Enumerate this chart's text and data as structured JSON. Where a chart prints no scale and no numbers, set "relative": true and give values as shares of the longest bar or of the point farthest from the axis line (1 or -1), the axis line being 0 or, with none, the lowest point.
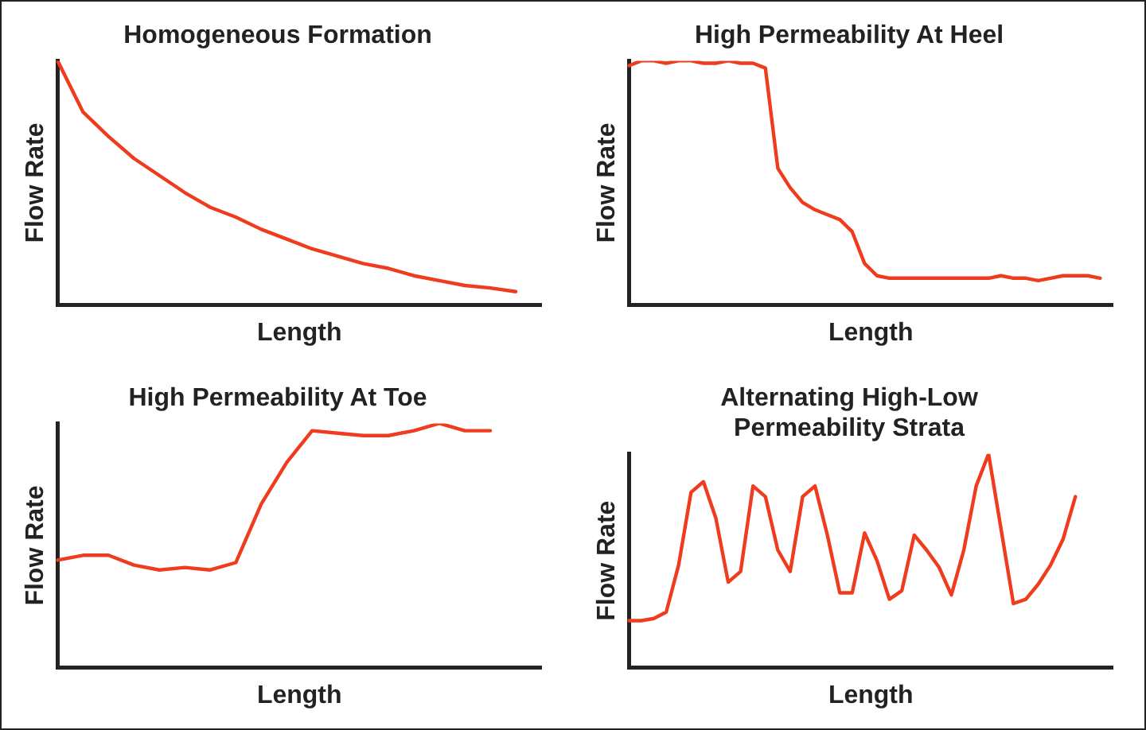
{
  "chart_data": [
    {
      "type": "line",
      "title": "Homogeneous Formation",
      "xlabel": "Length",
      "ylabel": "Flow Rate",
      "relative": true,
      "tick_labels": false,
      "grid": false,
      "legend": false,
      "marker": "none",
      "line_style": "solid",
      "categories": [
        null,
        null,
        null,
        null,
        null,
        null,
        null,
        null,
        null,
        null,
        null,
        null,
        null,
        null,
        null,
        null,
        null,
        null,
        null,
        null
      ],
      "series": [
        {
          "color": "#f03c1e",
          "values": [
            1.0,
            0.79,
            0.69,
            0.6,
            0.53,
            0.46,
            0.4,
            0.36,
            0.31,
            0.27,
            0.23,
            0.2,
            0.17,
            0.15,
            0.12,
            0.1,
            0.08,
            0.07,
            0.055,
            null
          ]
        }
      ]
    },
    {
      "type": "line",
      "title": "High Permeability At Heel",
      "xlabel": "Length",
      "ylabel": "Flow Rate",
      "relative": true,
      "tick_labels": false,
      "grid": false,
      "legend": false,
      "marker": "none",
      "line_style": "solid",
      "categories": [
        null,
        null,
        null,
        null,
        null,
        null,
        null,
        null,
        null,
        null,
        null,
        null,
        null,
        null,
        null,
        null,
        null,
        null,
        null,
        null,
        null,
        null,
        null,
        null,
        null,
        null,
        null,
        null,
        null,
        null,
        null,
        null,
        null,
        null,
        null,
        null,
        null,
        null,
        null,
        null
      ],
      "series": [
        {
          "color": "#f03c1e",
          "values": [
            0.98,
            1.0,
            1.0,
            0.99,
            1.0,
            1.0,
            0.99,
            0.99,
            1.0,
            0.99,
            0.99,
            0.97,
            0.56,
            0.48,
            0.42,
            0.39,
            0.37,
            0.35,
            0.3,
            0.17,
            0.12,
            0.11,
            0.11,
            0.11,
            0.11,
            0.11,
            0.11,
            0.11,
            0.11,
            0.11,
            0.12,
            0.11,
            0.11,
            0.1,
            0.11,
            0.12,
            0.12,
            0.12,
            0.11,
            null
          ]
        }
      ]
    },
    {
      "type": "line",
      "title": "High Permeability At Toe",
      "xlabel": "Length",
      "ylabel": "Flow Rate",
      "relative": true,
      "tick_labels": false,
      "grid": false,
      "legend": false,
      "marker": "none",
      "line_style": "solid",
      "categories": [
        null,
        null,
        null,
        null,
        null,
        null,
        null,
        null,
        null,
        null,
        null,
        null,
        null,
        null,
        null,
        null,
        null,
        null,
        null,
        null
      ],
      "series": [
        {
          "color": "#f03c1e",
          "values": [
            0.44,
            0.46,
            0.46,
            0.42,
            0.4,
            0.41,
            0.4,
            0.43,
            0.67,
            0.84,
            0.97,
            0.96,
            0.95,
            0.95,
            0.97,
            1.0,
            0.97,
            0.97,
            null,
            null
          ]
        }
      ]
    },
    {
      "type": "line",
      "title": "Alternating High-Low Permeability Strata",
      "xlabel": "Length",
      "ylabel": "Flow Rate",
      "relative": true,
      "tick_labels": false,
      "grid": false,
      "legend": false,
      "marker": "none",
      "line_style": "solid",
      "categories": [
        null,
        null,
        null,
        null,
        null,
        null,
        null,
        null,
        null,
        null,
        null,
        null,
        null,
        null,
        null,
        null,
        null,
        null,
        null,
        null,
        null,
        null,
        null,
        null,
        null,
        null,
        null,
        null,
        null,
        null,
        null,
        null,
        null,
        null,
        null,
        null,
        null,
        null,
        null,
        null
      ],
      "series": [
        {
          "color": "#f03c1e",
          "values": [
            0.22,
            0.22,
            0.23,
            0.26,
            0.48,
            0.82,
            0.87,
            0.7,
            0.4,
            0.45,
            0.85,
            0.8,
            0.55,
            0.45,
            0.8,
            0.85,
            0.62,
            0.35,
            0.35,
            0.63,
            0.5,
            0.32,
            0.36,
            0.62,
            0.55,
            0.47,
            0.34,
            0.55,
            0.85,
            1.0,
            0.65,
            0.3,
            0.32,
            0.39,
            0.48,
            0.6,
            0.8,
            null,
            null,
            null
          ]
        }
      ]
    }
  ]
}
